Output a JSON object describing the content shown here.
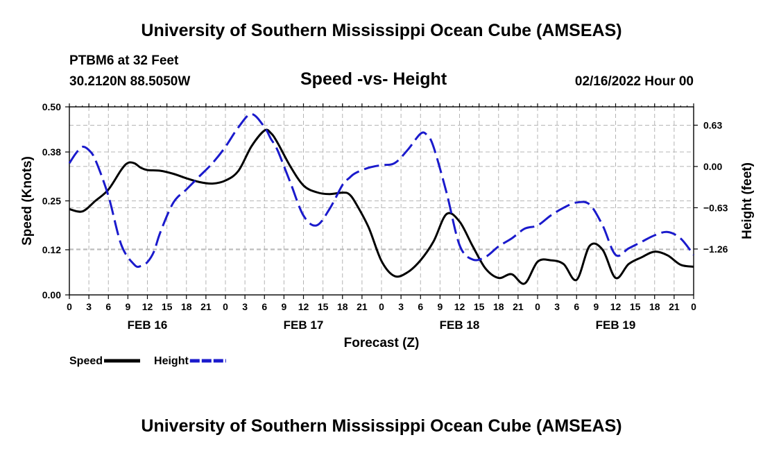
{
  "page": {
    "title": "University of Southern Mississippi Ocean Cube (AMSEAS)",
    "footer_title": "University of Southern Mississippi Ocean Cube (AMSEAS)",
    "station": "PTBM6 at 32 Feet",
    "coords": "30.2120N  88.5050W",
    "subtitle": "Speed -vs- Height",
    "datetime": "02/16/2022 Hour 00"
  },
  "chart_data": {
    "type": "line",
    "title": "Speed -vs- Height",
    "xlabel": "Forecast (Z)",
    "ylabel": "Speed (Knots)",
    "y2label": "Height (feet)",
    "grid": true,
    "x_hours_range": [
      0,
      96
    ],
    "x_tick_step_hours": 3,
    "x_tick_labels": [
      "0",
      "3",
      "6",
      "9",
      "12",
      "15",
      "18",
      "21",
      "0",
      "3",
      "6",
      "9",
      "12",
      "15",
      "18",
      "21",
      "0",
      "3",
      "6",
      "9",
      "12",
      "15",
      "18",
      "21",
      "0",
      "3",
      "6",
      "9",
      "12",
      "15",
      "18",
      "21",
      "0"
    ],
    "day_labels": [
      {
        "label": "FEB 16",
        "hour": 12
      },
      {
        "label": "FEB 17",
        "hour": 36
      },
      {
        "label": "FEB 18",
        "hour": 60
      },
      {
        "label": "FEB 19",
        "hour": 84
      }
    ],
    "ylim": [
      0,
      0.5
    ],
    "y_ticks": [
      0.0,
      0.12,
      0.25,
      0.38,
      0.5
    ],
    "y_tick_labels": [
      "0.00",
      "0.12",
      "0.25",
      "0.38",
      "0.50"
    ],
    "y2lim": [
      -1.96,
      0.91
    ],
    "y2_ticks": [
      0.63,
      0.0,
      -0.63,
      -1.26
    ],
    "y2_tick_labels": [
      "0.63",
      "0.00",
      "−0.63",
      "−1.26"
    ],
    "legend": [
      {
        "name": "Speed",
        "color": "#000000",
        "dash": "solid"
      },
      {
        "name": "Height",
        "color": "#1a1acc",
        "dash": "dashed"
      }
    ],
    "series": [
      {
        "name": "Speed",
        "axis": "left",
        "color": "#000000",
        "x": [
          0,
          2,
          4,
          6,
          8,
          9,
          10,
          11,
          12,
          14,
          16,
          18,
          20,
          22,
          24,
          26,
          28,
          30,
          31,
          32,
          34,
          36,
          38,
          40,
          42,
          43,
          44,
          46,
          48,
          50,
          52,
          54,
          56,
          58,
          60,
          62,
          64,
          66,
          68,
          70,
          72,
          74,
          76,
          78,
          80,
          82,
          84,
          86,
          88,
          90,
          92,
          94,
          96
        ],
        "values": [
          0.228,
          0.222,
          0.25,
          0.28,
          0.333,
          0.351,
          0.35,
          0.338,
          0.332,
          0.33,
          0.322,
          0.31,
          0.3,
          0.296,
          0.304,
          0.33,
          0.395,
          0.437,
          0.43,
          0.405,
          0.341,
          0.291,
          0.273,
          0.268,
          0.272,
          0.268,
          0.245,
          0.18,
          0.09,
          0.05,
          0.06,
          0.092,
          0.142,
          0.215,
          0.195,
          0.13,
          0.07,
          0.045,
          0.055,
          0.03,
          0.088,
          0.092,
          0.082,
          0.04,
          0.13,
          0.12,
          0.045,
          0.082,
          0.1,
          0.115,
          0.105,
          0.08,
          0.075
        ]
      },
      {
        "name": "Height",
        "axis": "right",
        "color": "#1a1acc",
        "x": [
          0,
          1,
          2,
          3,
          4,
          6,
          8,
          10,
          11,
          12,
          13,
          14,
          16,
          18,
          20,
          22,
          24,
          26,
          28,
          30,
          31,
          32,
          34,
          36,
          38,
          40,
          42,
          43,
          44,
          46,
          48,
          50,
          52,
          54,
          55,
          56,
          58,
          60,
          62,
          64,
          66,
          68,
          70,
          72,
          74,
          76,
          78,
          80,
          82,
          84,
          86,
          88,
          90,
          92,
          94,
          96
        ],
        "values": [
          0.05,
          0.2,
          0.3,
          0.25,
          0.1,
          -0.45,
          -1.2,
          -1.5,
          -1.52,
          -1.46,
          -1.3,
          -1.0,
          -0.55,
          -0.35,
          -0.15,
          0.05,
          0.3,
          0.6,
          0.8,
          0.6,
          0.42,
          0.25,
          -0.25,
          -0.75,
          -0.9,
          -0.65,
          -0.28,
          -0.18,
          -0.1,
          -0.02,
          0.02,
          0.05,
          0.25,
          0.5,
          0.48,
          0.3,
          -0.4,
          -1.2,
          -1.42,
          -1.38,
          -1.22,
          -1.1,
          -0.95,
          -0.9,
          -0.75,
          -0.63,
          -0.55,
          -0.58,
          -0.9,
          -1.35,
          -1.25,
          -1.15,
          -1.05,
          -1.0,
          -1.1,
          -1.35
        ]
      }
    ]
  }
}
